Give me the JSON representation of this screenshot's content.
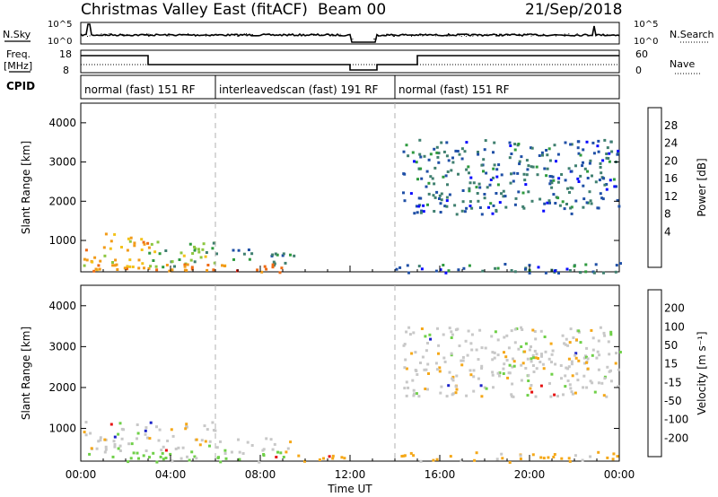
{
  "header": {
    "title": "Christmas Valley East (fitACF)",
    "beam": "Beam 00",
    "date": "21/Sep/2018"
  },
  "status_panels": {
    "nsky_label": "N.Sky",
    "nsky_ticks": [
      "10^5",
      "10^0"
    ],
    "nsearch_label": "N.Search",
    "nsearch_ticks": [
      "10^5",
      "10^0"
    ],
    "freq_label_1": "Freq.",
    "freq_label_2": "[MHz]",
    "freq_ticks": [
      "18",
      "8"
    ],
    "nave_label": "Nave",
    "nave_ticks": [
      "60",
      "0"
    ],
    "cpid_label": "CPID",
    "cpid_segments": [
      {
        "label": "normal (fast) 151 RF",
        "start_hour": 0,
        "end_hour": 6
      },
      {
        "label": "interleavedscan (fast) 191 RF",
        "start_hour": 6,
        "end_hour": 14
      },
      {
        "label": "normal (fast) 151 RF",
        "start_hour": 14,
        "end_hour": 24
      }
    ]
  },
  "chart_data": [
    {
      "type": "heatmap",
      "panel": "power",
      "xlabel": "",
      "ylabel": "Slant Range [km]",
      "ylim": [
        200,
        4500
      ],
      "xlim_hours": [
        0,
        24
      ],
      "yticks": [
        1000,
        2000,
        3000,
        4000
      ],
      "colorbar_label": "Power [dB]",
      "colorbar_ticks": [
        "4",
        "8",
        "12",
        "16",
        "20",
        "24",
        "28"
      ],
      "colorbar_colors": [
        "#0a0aff",
        "#1f4fa6",
        "#3f7f6f",
        "#2e9a3e",
        "#8cc63f",
        "#f3c21a",
        "#f29b18",
        "#ef6a12",
        "#e02010"
      ],
      "echo_regions": [
        {
          "x0": 0.1,
          "x1": 3.0,
          "y0": 280,
          "y1": 1200,
          "power_db": 24
        },
        {
          "x0": 3.0,
          "x1": 6.0,
          "y0": 350,
          "y1": 1050,
          "power_db": 16
        },
        {
          "x0": 6.0,
          "x1": 9.5,
          "y0": 400,
          "y1": 800,
          "power_db": 10
        },
        {
          "x0": 0.2,
          "x1": 9.0,
          "y0": 200,
          "y1": 420,
          "power_db": 28
        },
        {
          "x0": 14.0,
          "x1": 24.0,
          "y0": 200,
          "y1": 450,
          "power_db": 8
        },
        {
          "x0": 14.3,
          "x1": 24.0,
          "y0": 1700,
          "y1": 3600,
          "power_db": 8
        }
      ]
    },
    {
      "type": "heatmap",
      "panel": "velocity",
      "xlabel": "Time UT",
      "ylabel": "Slant Range [km]",
      "ylim": [
        200,
        4500
      ],
      "xlim_hours": [
        0,
        24
      ],
      "xticks": [
        "00:00",
        "04:00",
        "08:00",
        "12:00",
        "16:00",
        "20:00",
        "00:00"
      ],
      "yticks": [
        1000,
        2000,
        3000,
        4000
      ],
      "colorbar_label": "Velocity [m s⁻¹]",
      "colorbar_ticks": [
        "200",
        "100",
        "50",
        "15",
        "-15",
        "-50",
        "-100",
        "-200"
      ],
      "colorbar_colors": [
        "#1a22c8",
        "#2a5ad0",
        "#2f8a3a",
        "#6fd048",
        "#c8c8c8",
        "#f5a818",
        "#f07a12",
        "#ea4612",
        "#e61010"
      ],
      "echo_regions": [
        {
          "x0": 0.1,
          "x1": 6.0,
          "y0": 450,
          "y1": 1200,
          "velocity": 0
        },
        {
          "x0": 6.0,
          "x1": 9.5,
          "y0": 450,
          "y1": 800,
          "velocity": 0
        },
        {
          "x0": 0.2,
          "x1": 9.0,
          "y0": 200,
          "y1": 450,
          "velocity": 25
        },
        {
          "x0": 9.0,
          "x1": 12.0,
          "y0": 200,
          "y1": 380,
          "velocity": -30
        },
        {
          "x0": 14.0,
          "x1": 24.0,
          "y0": 200,
          "y1": 450,
          "velocity": -20
        },
        {
          "x0": 14.3,
          "x1": 24.0,
          "y0": 1800,
          "y1": 3500,
          "velocity": 0
        }
      ]
    }
  ]
}
